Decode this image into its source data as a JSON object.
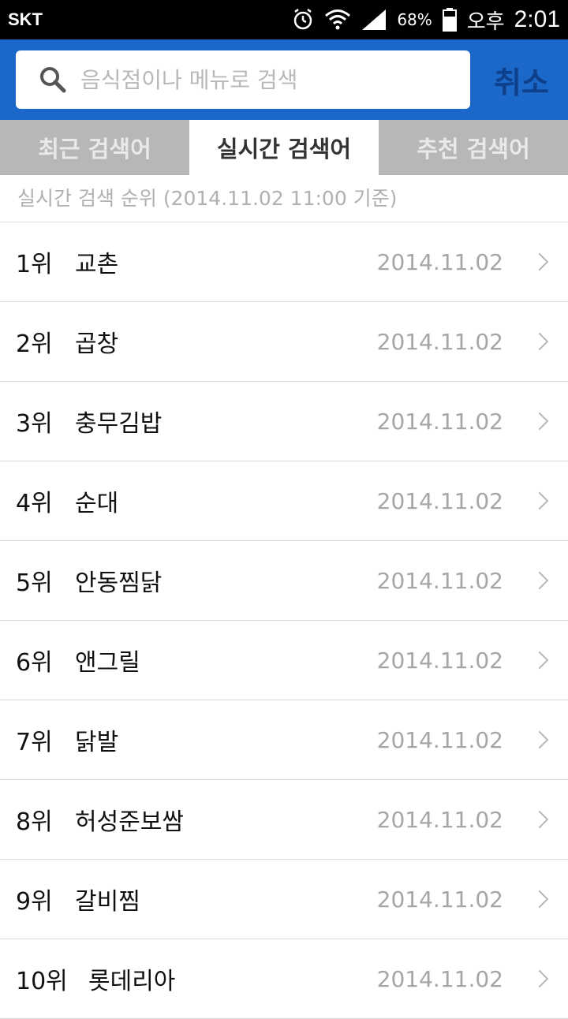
{
  "status_bar": {
    "carrier": "SKT",
    "battery_percent": "68%",
    "ampm": "오후",
    "time": "2:01"
  },
  "search": {
    "placeholder": "음식점이나 메뉴로 검색",
    "cancel_label": "취소"
  },
  "tabs": [
    {
      "label": "최근 검색어",
      "active": false
    },
    {
      "label": "실시간 검색어",
      "active": true
    },
    {
      "label": "추천 검색어",
      "active": false
    }
  ],
  "subtitle": "실시간 검색 순위 (2014.11.02 11:00 기준)",
  "rankings": [
    {
      "rank": "1위",
      "name": "교촌",
      "date": "2014.11.02"
    },
    {
      "rank": "2위",
      "name": "곱창",
      "date": "2014.11.02"
    },
    {
      "rank": "3위",
      "name": "충무김밥",
      "date": "2014.11.02"
    },
    {
      "rank": "4위",
      "name": "순대",
      "date": "2014.11.02"
    },
    {
      "rank": "5위",
      "name": "안동찜닭",
      "date": "2014.11.02"
    },
    {
      "rank": "6위",
      "name": "앤그릴",
      "date": "2014.11.02"
    },
    {
      "rank": "7위",
      "name": "닭발",
      "date": "2014.11.02"
    },
    {
      "rank": "8위",
      "name": "허성준보쌈",
      "date": "2014.11.02"
    },
    {
      "rank": "9위",
      "name": "갈비찜",
      "date": "2014.11.02"
    },
    {
      "rank": "10위",
      "name": "롯데리아",
      "date": "2014.11.02"
    }
  ],
  "colors": {
    "header_blue": "#1c68c8",
    "cancel_text": "#0e3f8a",
    "tab_inactive": "#b7b7b7"
  }
}
